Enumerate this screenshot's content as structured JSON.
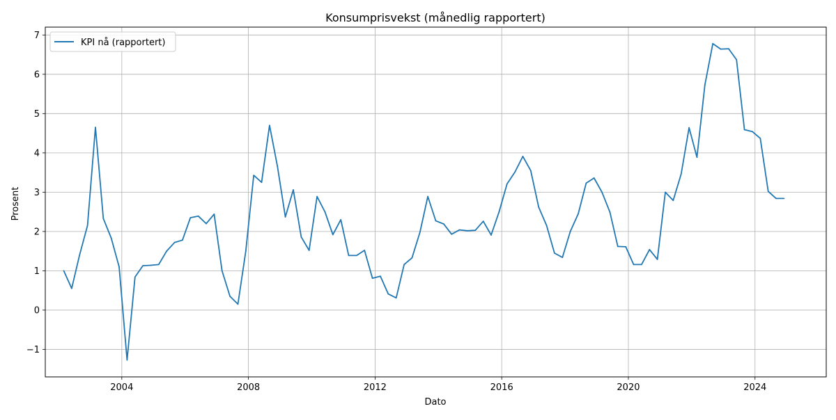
{
  "chart_data": {
    "type": "line",
    "title": "Konsumprisvekst (månedlig rapportert)",
    "xlabel": "Dato",
    "ylabel": "Prosent",
    "xlim": [
      "2001-08-01",
      "2026-04-01"
    ],
    "ylim": [
      -1.7,
      7.2
    ],
    "grid": true,
    "legend": {
      "placement": "top-left"
    },
    "x_ticks": [
      "2004",
      "2008",
      "2012",
      "2016",
      "2020",
      "2024"
    ],
    "y_ticks": [
      -1,
      0,
      1,
      2,
      3,
      4,
      5,
      6,
      7
    ],
    "y_tick_labels": [
      "−1",
      "0",
      "1",
      "2",
      "3",
      "4",
      "5",
      "6",
      "7"
    ],
    "colors": {
      "series": "#1f77b4",
      "grid": "#b0b0b0"
    },
    "series": [
      {
        "name": "KPI nå (rapportert)",
        "x": [
          "2002-03",
          "2002-06",
          "2002-09",
          "2002-12",
          "2003-03",
          "2003-06",
          "2003-09",
          "2003-12",
          "2004-03",
          "2004-06",
          "2004-09",
          "2004-12",
          "2005-03",
          "2005-06",
          "2005-09",
          "2005-12",
          "2006-03",
          "2006-06",
          "2006-09",
          "2006-12",
          "2007-03",
          "2007-06",
          "2007-09",
          "2007-12",
          "2008-03",
          "2008-06",
          "2008-09",
          "2008-12",
          "2009-03",
          "2009-06",
          "2009-09",
          "2009-12",
          "2010-03",
          "2010-06",
          "2010-09",
          "2010-12",
          "2011-03",
          "2011-06",
          "2011-09",
          "2011-12",
          "2012-03",
          "2012-06",
          "2012-09",
          "2012-12",
          "2013-03",
          "2013-06",
          "2013-09",
          "2013-12",
          "2014-03",
          "2014-06",
          "2014-09",
          "2014-12",
          "2015-03",
          "2015-06",
          "2015-09",
          "2015-12",
          "2016-03",
          "2016-06",
          "2016-09",
          "2016-12",
          "2017-03",
          "2017-06",
          "2017-09",
          "2017-12",
          "2018-03",
          "2018-06",
          "2018-09",
          "2018-12",
          "2019-03",
          "2019-06",
          "2019-09",
          "2019-12",
          "2020-03",
          "2020-06",
          "2020-09",
          "2020-12",
          "2021-03",
          "2021-06",
          "2021-09",
          "2021-12",
          "2022-03",
          "2022-06",
          "2022-09",
          "2022-12",
          "2023-03",
          "2023-06",
          "2023-09",
          "2023-12",
          "2024-03",
          "2024-06",
          "2024-09",
          "2024-12"
        ],
        "y": [
          1.0,
          0.55,
          1.4,
          2.15,
          4.65,
          2.33,
          1.83,
          1.1,
          -1.27,
          0.84,
          1.13,
          1.14,
          1.16,
          1.5,
          1.72,
          1.78,
          2.35,
          2.39,
          2.2,
          2.44,
          1.0,
          0.35,
          0.15,
          1.5,
          3.43,
          3.25,
          4.7,
          3.65,
          2.37,
          3.06,
          1.86,
          1.52,
          2.89,
          2.5,
          1.92,
          2.3,
          1.39,
          1.39,
          1.52,
          0.81,
          0.86,
          0.41,
          0.31,
          1.16,
          1.33,
          1.98,
          2.89,
          2.27,
          2.19,
          1.93,
          2.04,
          2.02,
          2.03,
          2.26,
          1.91,
          2.5,
          3.21,
          3.51,
          3.91,
          3.55,
          2.62,
          2.15,
          1.45,
          1.34,
          2.0,
          2.45,
          3.23,
          3.36,
          3.0,
          2.49,
          1.62,
          1.61,
          1.16,
          1.16,
          1.54,
          1.29,
          3.0,
          2.79,
          3.46,
          4.64,
          3.89,
          5.73,
          6.78,
          6.64,
          6.65,
          6.37,
          4.59,
          4.54,
          4.37,
          3.02,
          2.84,
          2.84
        ]
      }
    ]
  }
}
